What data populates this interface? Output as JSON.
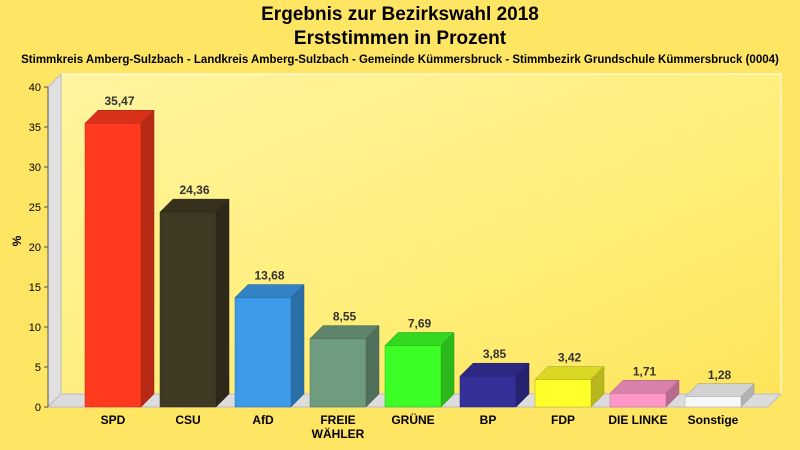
{
  "chart_data": {
    "type": "bar",
    "title": "Ergebnis zur Bezirkswahl 2018",
    "title2": "Erststimmen in Prozent",
    "subtitle": "Stimmkreis Amberg-Sulzbach - Landkreis Amberg-Sulzbach - Gemeinde Kümmersbruck - Stimmbezirk Grundschule Kümmersbruck (0004)",
    "ylabel": "%",
    "ylim": [
      0,
      40
    ],
    "yticks": [
      "0",
      "5",
      "10",
      "15",
      "20",
      "25",
      "30",
      "35",
      "40"
    ],
    "categories": [
      "SPD",
      "CSU",
      "AfD",
      "FREIE WÄHLER",
      "GRÜNE",
      "BP",
      "FDP",
      "DIE LINKE",
      "Sonstige"
    ],
    "category_lines": [
      [
        "SPD"
      ],
      [
        "CSU"
      ],
      [
        "AfD"
      ],
      [
        "FREIE",
        "WÄHLER"
      ],
      [
        "GRÜNE"
      ],
      [
        "BP"
      ],
      [
        "FDP"
      ],
      [
        "DIE LINKE"
      ],
      [
        "Sonstige"
      ]
    ],
    "values": [
      35.47,
      24.36,
      13.68,
      8.55,
      7.69,
      3.85,
      3.42,
      1.71,
      1.28
    ],
    "value_labels": [
      "35,47",
      "24,36",
      "13,68",
      "8,55",
      "7,69",
      "3,85",
      "3,42",
      "1,71",
      "1,28"
    ],
    "colors": [
      "#ff3a1e",
      "#3f3822",
      "#3c9ae8",
      "#6f9c7e",
      "#3cff26",
      "#34309a",
      "#ffff2a",
      "#ff98c8",
      "#f7f7f7"
    ],
    "grid": false
  }
}
